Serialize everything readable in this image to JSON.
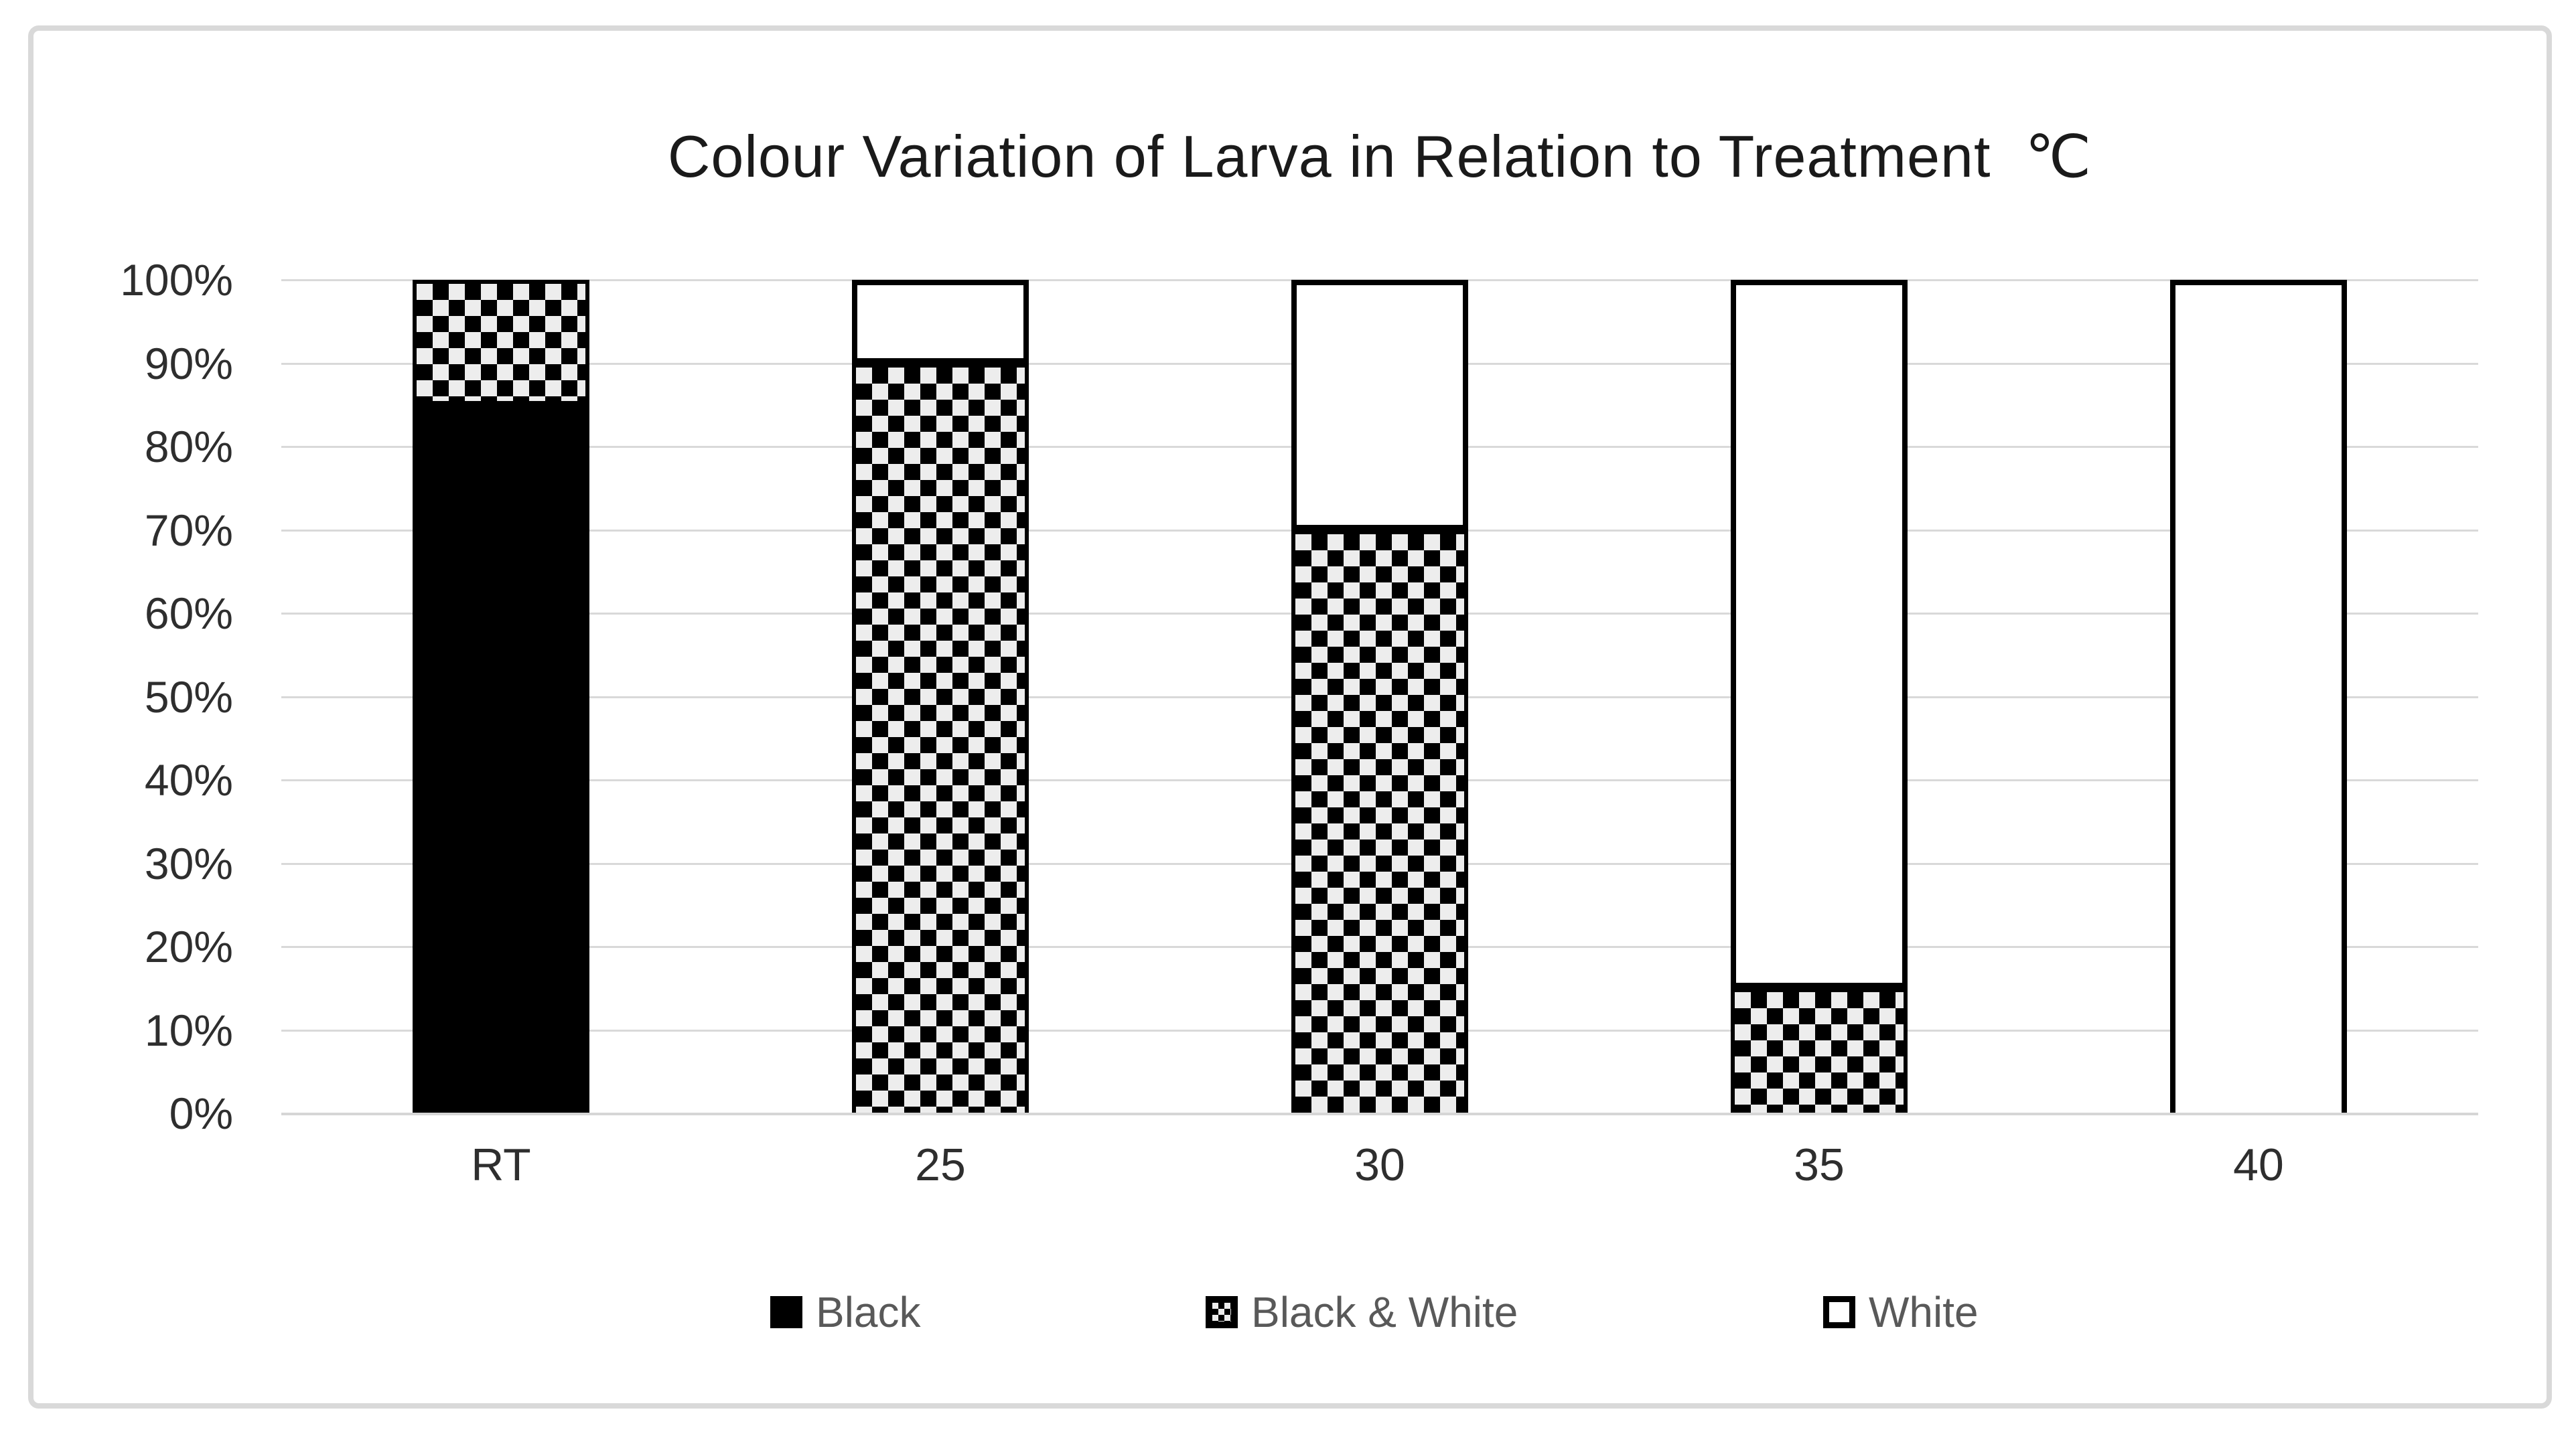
{
  "title": "Colour Variation of Larva in Relation to Treatment  ℃",
  "chart_data": {
    "type": "bar",
    "subtype": "stacked-100-percent-column",
    "title": "Colour Variation of Larva in Relation to Treatment  ℃",
    "categories": [
      "RT",
      "25",
      "30",
      "35",
      "40"
    ],
    "series": [
      {
        "name": "Black",
        "fill": "solid-black",
        "values": [
          85,
          0,
          0,
          0,
          0
        ]
      },
      {
        "name": "Black & White",
        "fill": "black-white-checker",
        "values": [
          15,
          90,
          70,
          15,
          0
        ]
      },
      {
        "name": "White",
        "fill": "white-outline",
        "values": [
          0,
          10,
          30,
          85,
          100
        ]
      }
    ],
    "xlabel": "",
    "ylabel": "",
    "y_ticks": [
      "0%",
      "10%",
      "20%",
      "30%",
      "40%",
      "50%",
      "60%",
      "70%",
      "80%",
      "90%",
      "100%"
    ],
    "ylim": [
      0,
      100
    ],
    "grid": true,
    "legend_position": "bottom"
  },
  "colors": {
    "title_text": "#1a1a1a",
    "axis_text": "#2e2e2e",
    "legend_text": "#595959",
    "gridline": "#d9d9d9",
    "frame_border": "#d9d9d9",
    "series_black": "#000000",
    "checker_light": "#ededed",
    "background": "#ffffff"
  }
}
